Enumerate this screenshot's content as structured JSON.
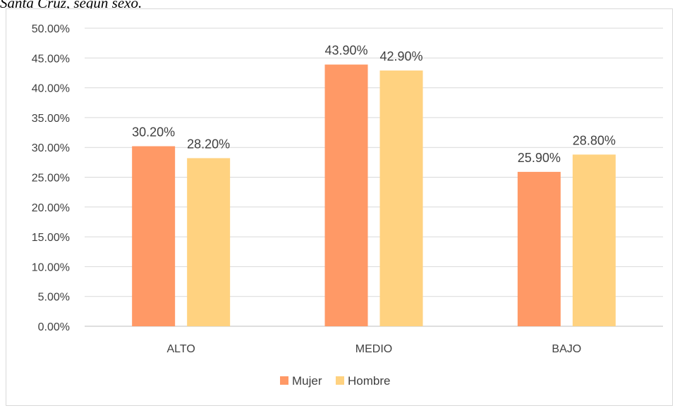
{
  "caption": "Santa Cruz, según sexo.",
  "chart_data": {
    "type": "bar",
    "title": "",
    "xlabel": "",
    "ylabel": "",
    "categories": [
      "ALTO",
      "MEDIO",
      "BAJO"
    ],
    "series": [
      {
        "name": "Mujer",
        "values": [
          30.2,
          43.9,
          25.9
        ],
        "labels": [
          "30.20%",
          "43.90%",
          "25.90%"
        ],
        "color": "#ff9966"
      },
      {
        "name": "Hombre",
        "values": [
          28.2,
          42.9,
          28.8
        ],
        "labels": [
          "28.20%",
          "42.90%",
          "28.80%"
        ],
        "color": "#ffd280"
      }
    ],
    "ylim": [
      0,
      50
    ],
    "yticks": [
      "0.00%",
      "5.00%",
      "10.00%",
      "15.00%",
      "20.00%",
      "25.00%",
      "30.00%",
      "35.00%",
      "40.00%",
      "45.00%",
      "50.00%"
    ],
    "grid": true,
    "legend": "bottom",
    "gridColor": "#d9d9d9",
    "axisColor": "#bfbfbf"
  }
}
